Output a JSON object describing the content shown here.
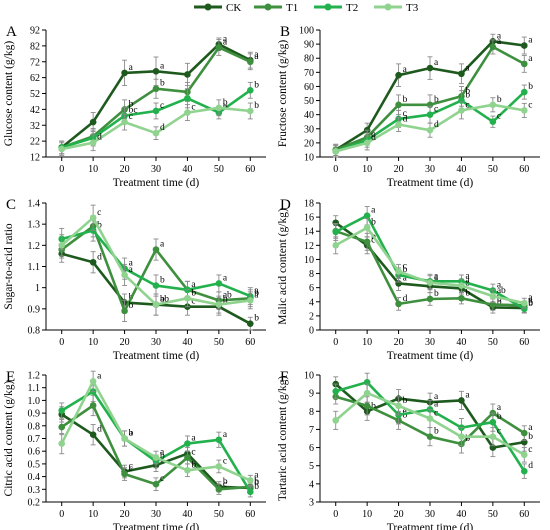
{
  "legend": {
    "items": [
      {
        "label": "CK",
        "color": "#1e5a1e"
      },
      {
        "label": "T1",
        "color": "#3e8f3e"
      },
      {
        "label": "T2",
        "color": "#22b14c"
      },
      {
        "label": "T3",
        "color": "#8fd38f"
      }
    ]
  },
  "chart_data": [
    {
      "type": "line",
      "panel_letter": "A",
      "ylabel": "Glucose content (g/kg)",
      "xlabel": "Treatment time (d)",
      "x": [
        0,
        10,
        20,
        30,
        40,
        50,
        60
      ],
      "ylim": [
        12,
        92
      ],
      "yticks": [
        12,
        22,
        32,
        42,
        52,
        62,
        72,
        82,
        92
      ],
      "xlim": [
        -5,
        65
      ],
      "xticks": [
        0,
        10,
        20,
        30,
        40,
        50,
        60
      ],
      "series": [
        {
          "name": "CK",
          "values": [
            18,
            34,
            65,
            66,
            64,
            83,
            73
          ],
          "err": [
            4,
            6,
            8,
            9,
            7,
            4,
            5
          ],
          "letters": [
            "",
            "",
            "a",
            "a",
            "",
            "a",
            "a"
          ]
        },
        {
          "name": "T1",
          "values": [
            18,
            25,
            42,
            55,
            53,
            81,
            72
          ],
          "err": [
            4,
            5,
            6,
            6,
            6,
            5,
            5
          ],
          "letters": [
            "",
            "",
            "b",
            "b",
            "",
            "a",
            "a"
          ]
        },
        {
          "name": "T2",
          "values": [
            18,
            24,
            38,
            41,
            49,
            40,
            54
          ],
          "err": [
            4,
            5,
            5,
            5,
            6,
            4,
            5
          ],
          "letters": [
            "",
            "",
            "bc",
            "c",
            "",
            "b",
            "b"
          ]
        },
        {
          "name": "T3",
          "values": [
            17,
            21,
            34,
            27,
            40,
            43,
            41
          ],
          "err": [
            4,
            5,
            5,
            4,
            5,
            5,
            5
          ],
          "letters": [
            "",
            "d",
            "c",
            "d",
            "c",
            "b",
            "b"
          ]
        }
      ]
    },
    {
      "type": "line",
      "panel_letter": "B",
      "ylabel": "Fructose content (g/kg)",
      "xlabel": "Treatment time (d)",
      "x": [
        0,
        10,
        20,
        30,
        40,
        50,
        60
      ],
      "ylim": [
        10,
        100
      ],
      "yticks": [
        10,
        20,
        30,
        40,
        50,
        60,
        70,
        80,
        90,
        100
      ],
      "xlim": [
        -5,
        65
      ],
      "xticks": [
        0,
        10,
        20,
        30,
        40,
        50,
        60
      ],
      "series": [
        {
          "name": "CK",
          "values": [
            15,
            29,
            68,
            73,
            69,
            92,
            89
          ],
          "err": [
            4,
            5,
            8,
            8,
            7,
            5,
            6
          ],
          "letters": [
            "",
            "",
            "a",
            "a",
            "a",
            "a",
            "a"
          ]
        },
        {
          "name": "T1",
          "values": [
            15,
            24,
            47,
            47,
            53,
            88,
            76
          ],
          "err": [
            4,
            5,
            7,
            7,
            7,
            5,
            6
          ],
          "letters": [
            "",
            "",
            "b",
            "b",
            "b",
            "a",
            "a"
          ]
        },
        {
          "name": "T2",
          "values": [
            14,
            22,
            37,
            40,
            50,
            35,
            56
          ],
          "err": [
            4,
            5,
            6,
            6,
            7,
            4,
            5
          ],
          "letters": [
            "",
            "c",
            "c",
            "c",
            "b",
            "c",
            "b"
          ]
        },
        {
          "name": "T3",
          "values": [
            14,
            20,
            33,
            29,
            43,
            47,
            43
          ],
          "err": [
            4,
            5,
            5,
            5,
            6,
            5,
            5
          ],
          "letters": [
            "",
            "d",
            "d",
            "d",
            "c",
            "b",
            "c"
          ]
        }
      ]
    },
    {
      "type": "line",
      "panel_letter": "C",
      "ylabel": "Sugar-to-acid ratio",
      "xlabel": "Treatment time (d)",
      "x": [
        0,
        10,
        20,
        30,
        40,
        50,
        60
      ],
      "ylim": [
        0.8,
        1.4
      ],
      "yticks": [
        0.8,
        0.9,
        1.0,
        1.1,
        1.2,
        1.3,
        1.4
      ],
      "ytick_labels": [
        "0.8",
        "0.9",
        "1",
        "1.1",
        "1.2",
        "1.3",
        "1.4"
      ],
      "xlim": [
        -5,
        65
      ],
      "xticks": [
        0,
        10,
        20,
        30,
        40,
        50,
        60
      ],
      "series": [
        {
          "name": "CK",
          "values": [
            1.16,
            1.12,
            0.93,
            0.92,
            0.91,
            0.91,
            0.83
          ],
          "err": [
            0.04,
            0.05,
            0.04,
            0.05,
            0.04,
            0.04,
            0.03
          ],
          "letters": [
            "",
            "d",
            "b",
            "b",
            "c",
            "b",
            "b"
          ]
        },
        {
          "name": "T1",
          "values": [
            1.18,
            1.29,
            0.89,
            1.18,
            0.99,
            0.94,
            0.95
          ],
          "err": [
            0.04,
            0.05,
            0.05,
            0.05,
            0.04,
            0.04,
            0.04
          ],
          "letters": [
            "",
            "",
            "b",
            "a",
            "",
            "ab",
            "b"
          ]
        },
        {
          "name": "T2",
          "values": [
            1.23,
            1.27,
            1.09,
            1.01,
            0.99,
            1.02,
            0.96
          ],
          "err": [
            0.05,
            0.05,
            0.05,
            0.05,
            0.04,
            0.04,
            0.04
          ],
          "letters": [
            "",
            "b",
            "a",
            "b",
            "a",
            "a",
            "a"
          ]
        },
        {
          "name": "T3",
          "values": [
            1.2,
            1.33,
            1.06,
            0.92,
            0.95,
            0.92,
            0.94
          ],
          "err": [
            0.05,
            0.06,
            0.05,
            0.05,
            0.04,
            0.04,
            0.04
          ],
          "letters": [
            "",
            "c",
            "a",
            "ab",
            "b",
            "b",
            "a"
          ]
        }
      ]
    },
    {
      "type": "line",
      "panel_letter": "D",
      "ylabel": "Malic acid content (g/kg)",
      "xlabel": "Treatment time (d)",
      "x": [
        0,
        10,
        20,
        30,
        40,
        50,
        60
      ],
      "ylim": [
        0,
        18
      ],
      "yticks": [
        0,
        2,
        4,
        6,
        8,
        10,
        12,
        14,
        16,
        18
      ],
      "xlim": [
        -5,
        65
      ],
      "xticks": [
        0,
        10,
        20,
        30,
        40,
        50,
        60
      ],
      "series": [
        {
          "name": "CK",
          "values": [
            15.2,
            12.0,
            6.6,
            6.2,
            5.9,
            3.2,
            3.1
          ],
          "err": [
            1.0,
            1.2,
            1.0,
            0.9,
            0.8,
            0.8,
            0.6
          ],
          "letters": [
            "",
            "c",
            "a",
            "a",
            "a",
            "b",
            "b"
          ]
        },
        {
          "name": "T1",
          "values": [
            14.0,
            12.5,
            3.7,
            4.4,
            4.5,
            3.6,
            3.5
          ],
          "err": [
            1.0,
            1.2,
            0.9,
            0.9,
            0.8,
            0.8,
            0.6
          ],
          "letters": [
            "",
            "b",
            "d",
            "b",
            "b",
            "b",
            "a"
          ]
        },
        {
          "name": "T2",
          "values": [
            13.9,
            16.2,
            7.8,
            6.9,
            6.9,
            5.6,
            3.0
          ],
          "err": [
            1.2,
            1.3,
            1.0,
            1.0,
            0.9,
            0.9,
            0.6
          ],
          "letters": [
            "",
            "a",
            "b",
            "a",
            "a",
            "a",
            "b"
          ]
        },
        {
          "name": "T3",
          "values": [
            12.0,
            14.5,
            8.3,
            6.7,
            6.3,
            4.8,
            3.8
          ],
          "err": [
            1.2,
            1.3,
            1.0,
            1.0,
            0.9,
            0.9,
            0.7
          ],
          "letters": [
            "",
            "b",
            "c",
            "a",
            "a",
            "ab",
            "a"
          ]
        }
      ]
    },
    {
      "type": "line",
      "panel_letter": "E",
      "ylabel": "Citric acid content (g/kg)",
      "xlabel": "Treatment time (d)",
      "x": [
        0,
        10,
        20,
        30,
        40,
        50,
        60
      ],
      "ylim": [
        0.2,
        1.2
      ],
      "yticks": [
        0.2,
        0.3,
        0.4,
        0.5,
        0.6,
        0.7,
        0.8,
        0.9,
        1.0,
        1.1,
        1.2
      ],
      "ytick_labels": [
        "0.2",
        "0.3",
        "0.4",
        "0.5",
        "0.6",
        "0.7",
        "0.8",
        "0.9",
        "1.0",
        "1.1",
        "1.2"
      ],
      "xlim": [
        -5,
        65
      ],
      "xticks": [
        0,
        10,
        20,
        30,
        40,
        50,
        60
      ],
      "series": [
        {
          "name": "CK",
          "values": [
            0.89,
            0.73,
            0.44,
            0.49,
            0.58,
            0.32,
            0.31
          ],
          "err": [
            0.06,
            0.08,
            0.05,
            0.05,
            0.05,
            0.04,
            0.04
          ],
          "letters": [
            "",
            "d",
            "c",
            "c",
            "",
            "b",
            "b"
          ]
        },
        {
          "name": "T1",
          "values": [
            0.79,
            0.96,
            0.42,
            0.34,
            0.55,
            0.3,
            0.32
          ],
          "err": [
            0.06,
            0.08,
            0.05,
            0.05,
            0.05,
            0.04,
            0.04
          ],
          "letters": [
            "",
            "",
            "c",
            "c",
            "c",
            "c",
            "b"
          ]
        },
        {
          "name": "T2",
          "values": [
            0.92,
            1.07,
            0.7,
            0.52,
            0.66,
            0.69,
            0.28
          ],
          "err": [
            0.06,
            0.08,
            0.06,
            0.05,
            0.06,
            0.06,
            0.04
          ],
          "letters": [
            "",
            "",
            "b",
            "b",
            "a",
            "a",
            "b"
          ]
        },
        {
          "name": "T3",
          "values": [
            0.66,
            1.15,
            0.7,
            0.55,
            0.45,
            0.48,
            0.37
          ],
          "err": [
            0.08,
            0.08,
            0.06,
            0.05,
            0.05,
            0.05,
            0.04
          ],
          "letters": [
            "",
            "a",
            "a",
            "a",
            "b",
            "c",
            "a"
          ]
        }
      ]
    },
    {
      "type": "line",
      "panel_letter": "F",
      "ylabel": "Tartaric acid content (g/kg)",
      "xlabel": "Treatment time (d)",
      "x": [
        0,
        10,
        20,
        30,
        40,
        50,
        60
      ],
      "ylim": [
        3,
        10
      ],
      "yticks": [
        3,
        4,
        5,
        6,
        7,
        8,
        9,
        10
      ],
      "xlim": [
        -5,
        65
      ],
      "xticks": [
        0,
        10,
        20,
        30,
        40,
        50,
        60
      ],
      "series": [
        {
          "name": "CK",
          "values": [
            9.5,
            8.0,
            8.7,
            8.5,
            8.6,
            6.0,
            6.3
          ],
          "err": [
            0.4,
            0.5,
            0.5,
            0.5,
            0.5,
            0.5,
            0.5
          ],
          "letters": [
            "",
            "b",
            "",
            "a",
            "a",
            "",
            "b"
          ]
        },
        {
          "name": "T1",
          "values": [
            8.8,
            8.3,
            7.5,
            6.6,
            6.2,
            7.9,
            6.8
          ],
          "err": [
            0.4,
            0.5,
            0.5,
            0.5,
            0.5,
            0.5,
            0.4
          ],
          "letters": [
            "",
            "",
            "b",
            "b",
            "b",
            "a",
            "a"
          ]
        },
        {
          "name": "T2",
          "values": [
            9.1,
            9.6,
            7.8,
            8.1,
            7.1,
            7.4,
            4.7
          ],
          "err": [
            0.4,
            0.5,
            0.5,
            0.5,
            0.5,
            0.5,
            0.4
          ],
          "letters": [
            "",
            "",
            "a",
            "a",
            "",
            "b",
            "d"
          ]
        },
        {
          "name": "T3",
          "values": [
            7.5,
            9.0,
            8.3,
            7.6,
            6.6,
            6.6,
            5.6
          ],
          "err": [
            0.5,
            0.5,
            0.5,
            0.5,
            0.5,
            0.5,
            0.4
          ],
          "letters": [
            "",
            "",
            "b",
            "c",
            "",
            "c",
            "c"
          ]
        }
      ]
    }
  ]
}
